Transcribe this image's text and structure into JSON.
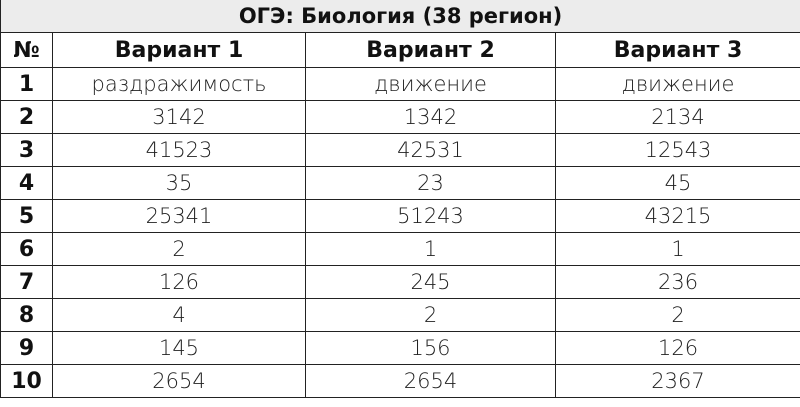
{
  "title": "ОГЭ: Биология (38 регион)",
  "headers": [
    "№",
    "Вариант 1",
    "Вариант 2",
    "Вариант 3"
  ],
  "rows": [
    [
      "1",
      "раздражимость",
      "движение",
      "движение"
    ],
    [
      "2",
      "3142",
      "1342",
      "2134"
    ],
    [
      "3",
      "41523",
      "42531",
      "12543"
    ],
    [
      "4",
      "35",
      "23",
      "45"
    ],
    [
      "5",
      "25341",
      "51243",
      "43215"
    ],
    [
      "6",
      "2",
      "1",
      "1"
    ],
    [
      "7",
      "126",
      "245",
      "236"
    ],
    [
      "8",
      "4",
      "2",
      "2"
    ],
    [
      "9",
      "145",
      "156",
      "126"
    ],
    [
      "10",
      "2654",
      "2654",
      "2367"
    ]
  ]
}
